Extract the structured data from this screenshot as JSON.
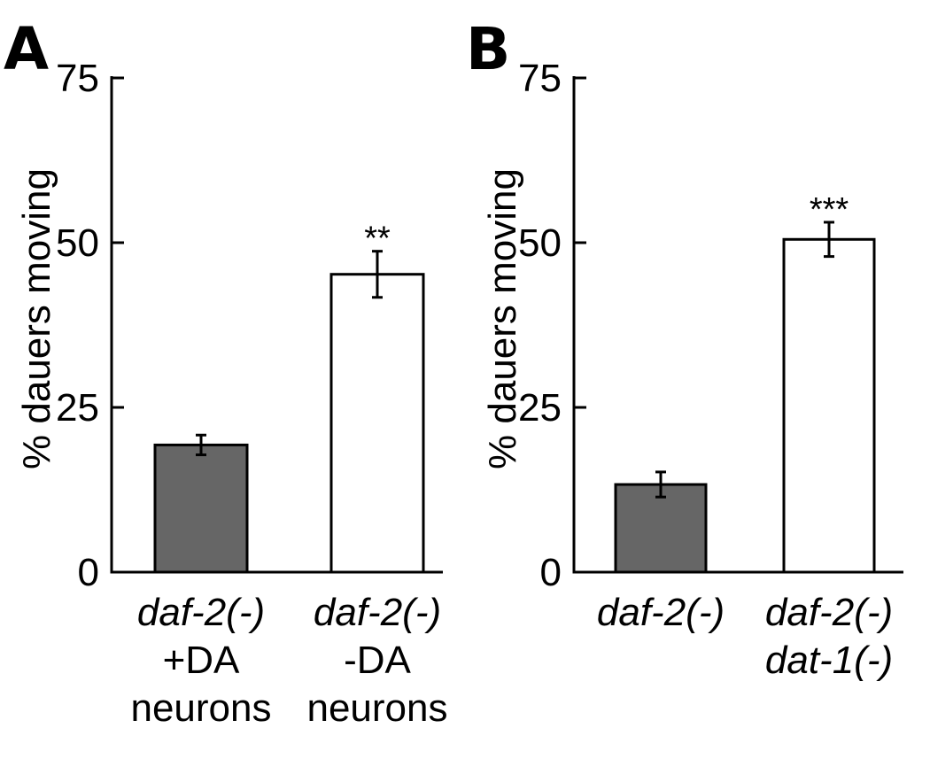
{
  "colors": {
    "gray_bar": "#666666",
    "white_bar": "#ffffff",
    "axis": "#000000"
  },
  "chart_data": [
    {
      "type": "bar",
      "panel": "A",
      "ylabel": "% dauers moving",
      "ylim": [
        0,
        75
      ],
      "yticks": [
        0,
        25,
        50,
        75
      ],
      "grid": false,
      "categories": [
        {
          "lines": [
            {
              "text": "daf-2(-)",
              "italic": true
            },
            {
              "text": "+DA",
              "italic": false
            },
            {
              "text": "neurons",
              "italic": false
            }
          ]
        },
        {
          "lines": [
            {
              "text": "daf-2(-)",
              "italic": true
            },
            {
              "text": "-DA",
              "italic": false
            },
            {
              "text": "neurons",
              "italic": false
            }
          ]
        }
      ],
      "values": [
        19.3,
        45.2
      ],
      "errors": [
        1.5,
        3.5
      ],
      "colors": [
        "#666666",
        "#ffffff"
      ],
      "annotations": [
        "",
        "**"
      ]
    },
    {
      "type": "bar",
      "panel": "B",
      "ylabel": "% dauers moving",
      "ylim": [
        0,
        75
      ],
      "yticks": [
        0,
        25,
        50,
        75
      ],
      "grid": false,
      "categories": [
        {
          "lines": [
            {
              "text": "daf-2(-)",
              "italic": true
            }
          ]
        },
        {
          "lines": [
            {
              "text": "daf-2(-)",
              "italic": true
            },
            {
              "text": "dat-1(-)",
              "italic": true
            }
          ]
        }
      ],
      "values": [
        13.3,
        50.5
      ],
      "errors": [
        1.9,
        2.6
      ],
      "colors": [
        "#666666",
        "#ffffff"
      ],
      "annotations": [
        "",
        "***"
      ]
    }
  ]
}
